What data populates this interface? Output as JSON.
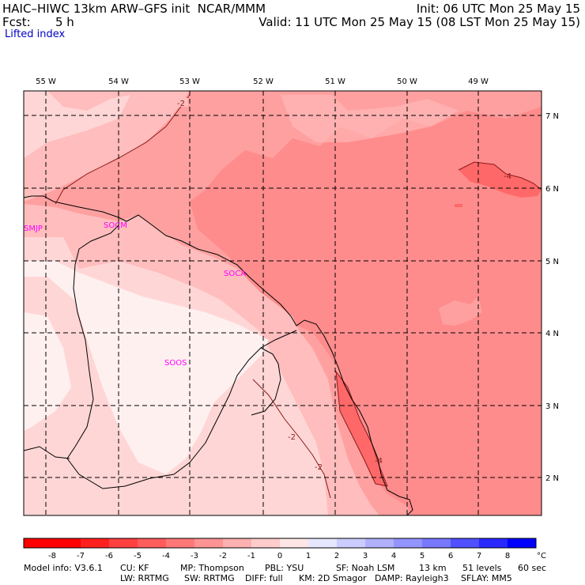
{
  "header": {
    "title": "HAIC–HIWC 13km ARW–GFS init  NCAR/MMM",
    "init": "Init: 06 UTC Mon 25 May 15",
    "fcst_label": "Fcst:",
    "fcst_value": "5 h",
    "valid": "Valid: 11 UTC Mon 25 May 15 (08 LST Mon 25 May 15)",
    "field": "Lifted index"
  },
  "map": {
    "lon_labels": [
      "55 W",
      "54 W",
      "53 W",
      "52 W",
      "51 W",
      "50 W",
      "49 W"
    ],
    "lat_labels": [
      "7 N",
      "6 N",
      "5 N",
      "4 N",
      "3 N",
      "2 N"
    ],
    "stations": [
      "SMJP",
      "SOCM",
      "SOCA",
      "SOOS"
    ],
    "contour_labels": [
      "-2",
      "-4",
      "-2",
      "-2",
      "-4"
    ],
    "colors": {
      "level_m4": "#ff8c8c",
      "level_m3": "#ffa0a0",
      "level_m2": "#ffbdbd",
      "level_m1": "#ffd6d6",
      "level_0": "#fff0f0",
      "level_m5": "#ff6868",
      "station": "#ff00ff"
    }
  },
  "colorbar": {
    "tick_labels": [
      "-8",
      "-7",
      "-6",
      "-5",
      "-4",
      "-3",
      "-2",
      "-1",
      "0",
      "1",
      "2",
      "3",
      "4",
      "5",
      "6",
      "7",
      "8"
    ],
    "unit": "°C",
    "colors": [
      "#ff0000",
      "#ff2020",
      "#ff4040",
      "#ff5c5c",
      "#ff7878",
      "#ff9494",
      "#ffb0b0",
      "#ffcccc",
      "#ffe6e6",
      "#e6e6ff",
      "#ccccff",
      "#b0b0ff",
      "#9494ff",
      "#7878ff",
      "#5050ff",
      "#2828ff",
      "#0000ff"
    ]
  },
  "footer": {
    "line1": [
      "Model info: V3.6.1",
      "CU: KF",
      "MP: Thompson",
      "PBL: YSU",
      "SF: Noah LSM",
      "13 km",
      "51 levels",
      "60 sec"
    ],
    "line2": [
      "LW: RRTMG",
      "SW: RRTMG",
      "DIFF: full",
      "KM: 2D Smagor",
      "DAMP: Rayleigh3",
      "SFLAY: MM5"
    ]
  }
}
